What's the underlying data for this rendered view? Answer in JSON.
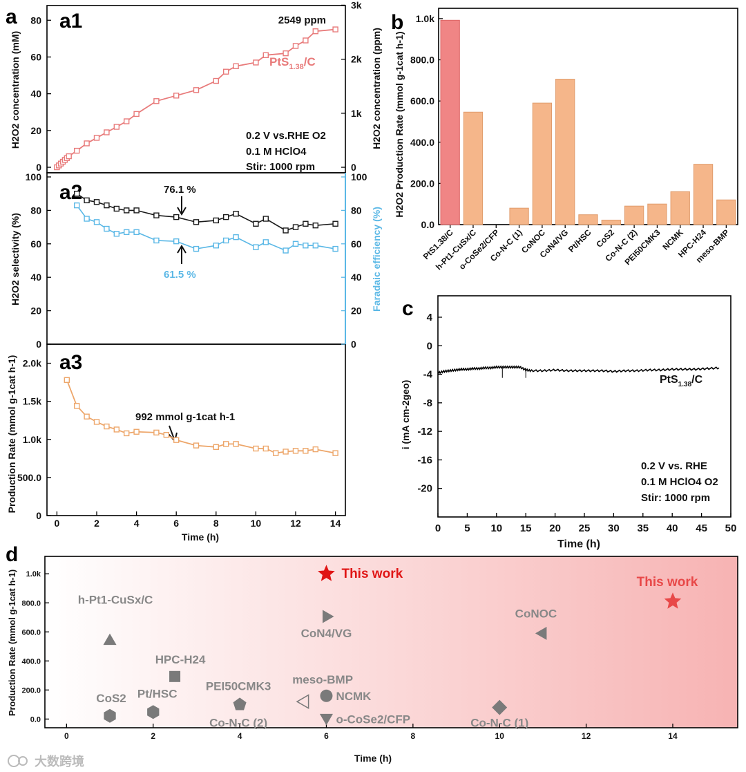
{
  "colors": {
    "red_line": "#e87a7a",
    "black_line": "#1a1a1a",
    "blue_line": "#5bb8e6",
    "orange_line": "#eda66a",
    "bar_pink": "#f08585",
    "bar_orange": "#f5b68a",
    "gray_marker": "#7a7a7a",
    "star_red": "#e01515",
    "star_red_light": "#e84848"
  },
  "watermark": "大数跨境",
  "panels": {
    "a": "a",
    "a1": "a1",
    "a2": "a2",
    "a3": "a3",
    "b": "b",
    "c": "c",
    "d": "d"
  },
  "chart_data": [
    {
      "id": "a1",
      "type": "line",
      "ylabel": "H2O2 concentration (mM)",
      "y2label": "H2O2 concentration (ppm)",
      "xlim": [
        -0.5,
        14.5
      ],
      "ylim": [
        -3,
        88
      ],
      "yticks": [
        0,
        20,
        40,
        60,
        80
      ],
      "y2ticks": [
        {
          "label": "0",
          "v": 0
        },
        {
          "label": "1k",
          "v": 29.4
        },
        {
          "label": "2k",
          "v": 58.8
        },
        {
          "label": "3k",
          "v": 88.2
        }
      ],
      "legend": "PtS1.38/C",
      "annotations": [
        "2549 ppm",
        "0.2 V vs.RHE O2",
        "0.1 M HClO4",
        "Stir: 1000 rpm"
      ],
      "series": [
        {
          "name": "PtS1.38/C",
          "x": [
            0,
            0.1,
            0.2,
            0.3,
            0.4,
            0.5,
            0.6,
            1.0,
            1.5,
            2.0,
            2.5,
            3.0,
            3.5,
            4.0,
            5.0,
            6.0,
            7.0,
            8.0,
            8.5,
            9.0,
            10.0,
            10.5,
            11.5,
            12.0,
            12.5,
            13.0,
            14.0
          ],
          "y": [
            0,
            1,
            2,
            3,
            4,
            5,
            6,
            9,
            13,
            16,
            19,
            22,
            25,
            29,
            36,
            39,
            42,
            47,
            52,
            55,
            57,
            61,
            62,
            66,
            69,
            74,
            75
          ]
        }
      ]
    },
    {
      "id": "a2",
      "type": "line",
      "ylabel": "H2O2 selectivity (%)",
      "y2label": "Faradaic efficiency (%)",
      "xlim": [
        -0.5,
        14.5
      ],
      "ylim": [
        0,
        100
      ],
      "yticks": [
        0,
        20,
        40,
        60,
        80,
        100
      ],
      "y2ticks": [
        0,
        20,
        40,
        60,
        80,
        100
      ],
      "annotations": [
        "76.1 %",
        "61.5 %"
      ],
      "series": [
        {
          "name": "H2O2 selectivity",
          "x": [
            1,
            1.5,
            2,
            2.5,
            3,
            3.5,
            4,
            5,
            6,
            7,
            8,
            8.5,
            9,
            10,
            10.5,
            11.5,
            12,
            12.5,
            13,
            14
          ],
          "y": [
            90,
            86,
            85,
            83,
            81,
            80,
            80,
            77,
            76,
            73,
            74,
            76,
            78,
            72,
            75,
            68,
            70,
            72,
            71,
            72
          ]
        },
        {
          "name": "Faradaic efficiency",
          "x": [
            1,
            1.5,
            2,
            2.5,
            3,
            3.5,
            4,
            5,
            6,
            7,
            8,
            8.5,
            9,
            10,
            10.5,
            11.5,
            12,
            12.5,
            13,
            14
          ],
          "y": [
            83,
            75,
            73,
            69,
            66,
            67,
            67,
            62,
            61.5,
            57,
            59,
            62,
            64,
            58,
            61,
            56,
            60,
            59,
            59,
            57
          ]
        }
      ]
    },
    {
      "id": "a3",
      "type": "line",
      "ylabel": "Production Rate (mmol g-1cat h-1)",
      "xlabel": "Time (h)",
      "xlim": [
        -0.5,
        14.5
      ],
      "ylim": [
        0,
        2250
      ],
      "xticks": [
        0,
        2,
        4,
        6,
        8,
        10,
        12,
        14
      ],
      "yticks": [
        {
          "label": "0",
          "v": 0
        },
        {
          "label": "500.0",
          "v": 500
        },
        {
          "label": "1.0k",
          "v": 1000
        },
        {
          "label": "1.5k",
          "v": 1500
        },
        {
          "label": "2.0k",
          "v": 2000
        }
      ],
      "annotations": [
        "992 mmol g-1cat h-1"
      ],
      "series": [
        {
          "name": "Production Rate",
          "x": [
            0.5,
            1,
            1.5,
            2,
            2.5,
            3,
            3.5,
            4,
            5,
            5.5,
            6,
            7,
            8,
            8.5,
            9,
            10,
            10.5,
            11,
            11.5,
            12,
            12.5,
            13,
            14
          ],
          "y": [
            1780,
            1440,
            1300,
            1230,
            1170,
            1130,
            1080,
            1100,
            1090,
            1060,
            992,
            920,
            900,
            940,
            940,
            880,
            880,
            820,
            840,
            850,
            850,
            870,
            820
          ]
        }
      ]
    },
    {
      "id": "b",
      "type": "bar",
      "ylabel": "H2O2 Production Rate (mmol g-1cat h-1)",
      "ylim": [
        0,
        1050
      ],
      "yticks": [
        {
          "label": "0.0",
          "v": 0
        },
        {
          "label": "200.0",
          "v": 200
        },
        {
          "label": "400.0",
          "v": 400
        },
        {
          "label": "600.0",
          "v": 600
        },
        {
          "label": "800.0",
          "v": 800
        },
        {
          "label": "1.0k",
          "v": 1000
        }
      ],
      "categories": [
        "PtS1.38/C",
        "h-Pt1-CuSx/C",
        "o-CoSe2/CFP",
        "Co-N-C (1)",
        "CoNOC",
        "CoN4/VG",
        "Pt/HSC",
        "CoS2",
        "Co-N-C (2)",
        "PEI50CMK3",
        "NCMK",
        "HPC-H24",
        "meso-BMP"
      ],
      "values": [
        992,
        546,
        0,
        80,
        590,
        706,
        48,
        22,
        90,
        100,
        160,
        293,
        120
      ]
    },
    {
      "id": "c",
      "type": "line",
      "xlabel": "Time (h)",
      "ylabel": "i (mA cm-2geo)",
      "xlim": [
        0,
        50
      ],
      "ylim": [
        -24,
        7
      ],
      "xticks": [
        0,
        5,
        10,
        15,
        20,
        25,
        30,
        35,
        40,
        45,
        50
      ],
      "yticks": [
        4,
        0,
        -4,
        -8,
        -12,
        -16,
        -20
      ],
      "legend": "PtS1.38/C",
      "annotations": [
        "0.2 V vs. RHE",
        "0.1 M HClO4 O2",
        "Stir: 1000 rpm"
      ],
      "series": [
        {
          "name": "PtS1.38/C",
          "x": [
            0,
            1,
            2,
            3,
            4,
            5,
            6,
            7,
            8,
            9,
            10,
            11,
            12,
            13,
            14,
            15,
            16,
            18,
            20,
            22,
            24,
            26,
            28,
            30,
            32,
            34,
            36,
            38,
            40,
            42,
            44,
            46,
            48
          ],
          "y": [
            -3.8,
            -3.6,
            -3.5,
            -3.4,
            -3.3,
            -3.3,
            -3.2,
            -3.2,
            -3.1,
            -3.1,
            -3.0,
            -3.0,
            -3.0,
            -3.0,
            -3.0,
            -3.4,
            -3.5,
            -3.5,
            -3.4,
            -3.5,
            -3.5,
            -3.5,
            -3.5,
            -3.6,
            -3.5,
            -3.5,
            -3.4,
            -3.4,
            -3.3,
            -3.3,
            -3.3,
            -3.2,
            -3.1
          ]
        }
      ]
    },
    {
      "id": "d",
      "type": "scatter",
      "xlabel": "Time (h)",
      "ylabel": "Production Rate (mmol g-1cat h-1)",
      "xlim": [
        -0.5,
        15.5
      ],
      "ylim": [
        -60,
        1120
      ],
      "xticks": [
        0,
        2,
        4,
        6,
        8,
        10,
        12,
        14
      ],
      "yticks": [
        {
          "label": "0.0",
          "v": 0
        },
        {
          "label": "200.0",
          "v": 200
        },
        {
          "label": "400.0",
          "v": 400
        },
        {
          "label": "600.0",
          "v": 600
        },
        {
          "label": "800.0",
          "v": 800
        },
        {
          "label": "1.0k",
          "v": 1000
        }
      ],
      "points": [
        {
          "label": "This work",
          "x": 6,
          "y": 1000,
          "marker": "star"
        },
        {
          "label": "This work",
          "x": 14,
          "y": 810,
          "marker": "star"
        },
        {
          "label": "h-Pt1-CuSx/C",
          "x": 1,
          "y": 546,
          "marker": "triangle-up"
        },
        {
          "label": "CoN4/VG",
          "x": 6,
          "y": 706,
          "marker": "triangle-right"
        },
        {
          "label": "CoNOC",
          "x": 11,
          "y": 590,
          "marker": "triangle-left"
        },
        {
          "label": "HPC-H24",
          "x": 2.5,
          "y": 293,
          "marker": "square"
        },
        {
          "label": "CoS2",
          "x": 1,
          "y": 22,
          "marker": "hexagon"
        },
        {
          "label": "Pt/HSC",
          "x": 2,
          "y": 48,
          "marker": "hexagon"
        },
        {
          "label": "PEI50CMK3",
          "x": 4,
          "y": 100,
          "marker": "pentagon"
        },
        {
          "label": "Co-N-C (2)",
          "x": 4,
          "y": 90,
          "marker": "none"
        },
        {
          "label": "meso-BMP",
          "x": 5.5,
          "y": 120,
          "marker": "triangle-left-open"
        },
        {
          "label": "NCMK",
          "x": 6,
          "y": 160,
          "marker": "circle"
        },
        {
          "label": "o-CoSe2/CFP",
          "x": 6,
          "y": 0,
          "marker": "triangle-down"
        },
        {
          "label": "Co-N-C (1)",
          "x": 10,
          "y": 80,
          "marker": "diamond"
        }
      ]
    }
  ]
}
